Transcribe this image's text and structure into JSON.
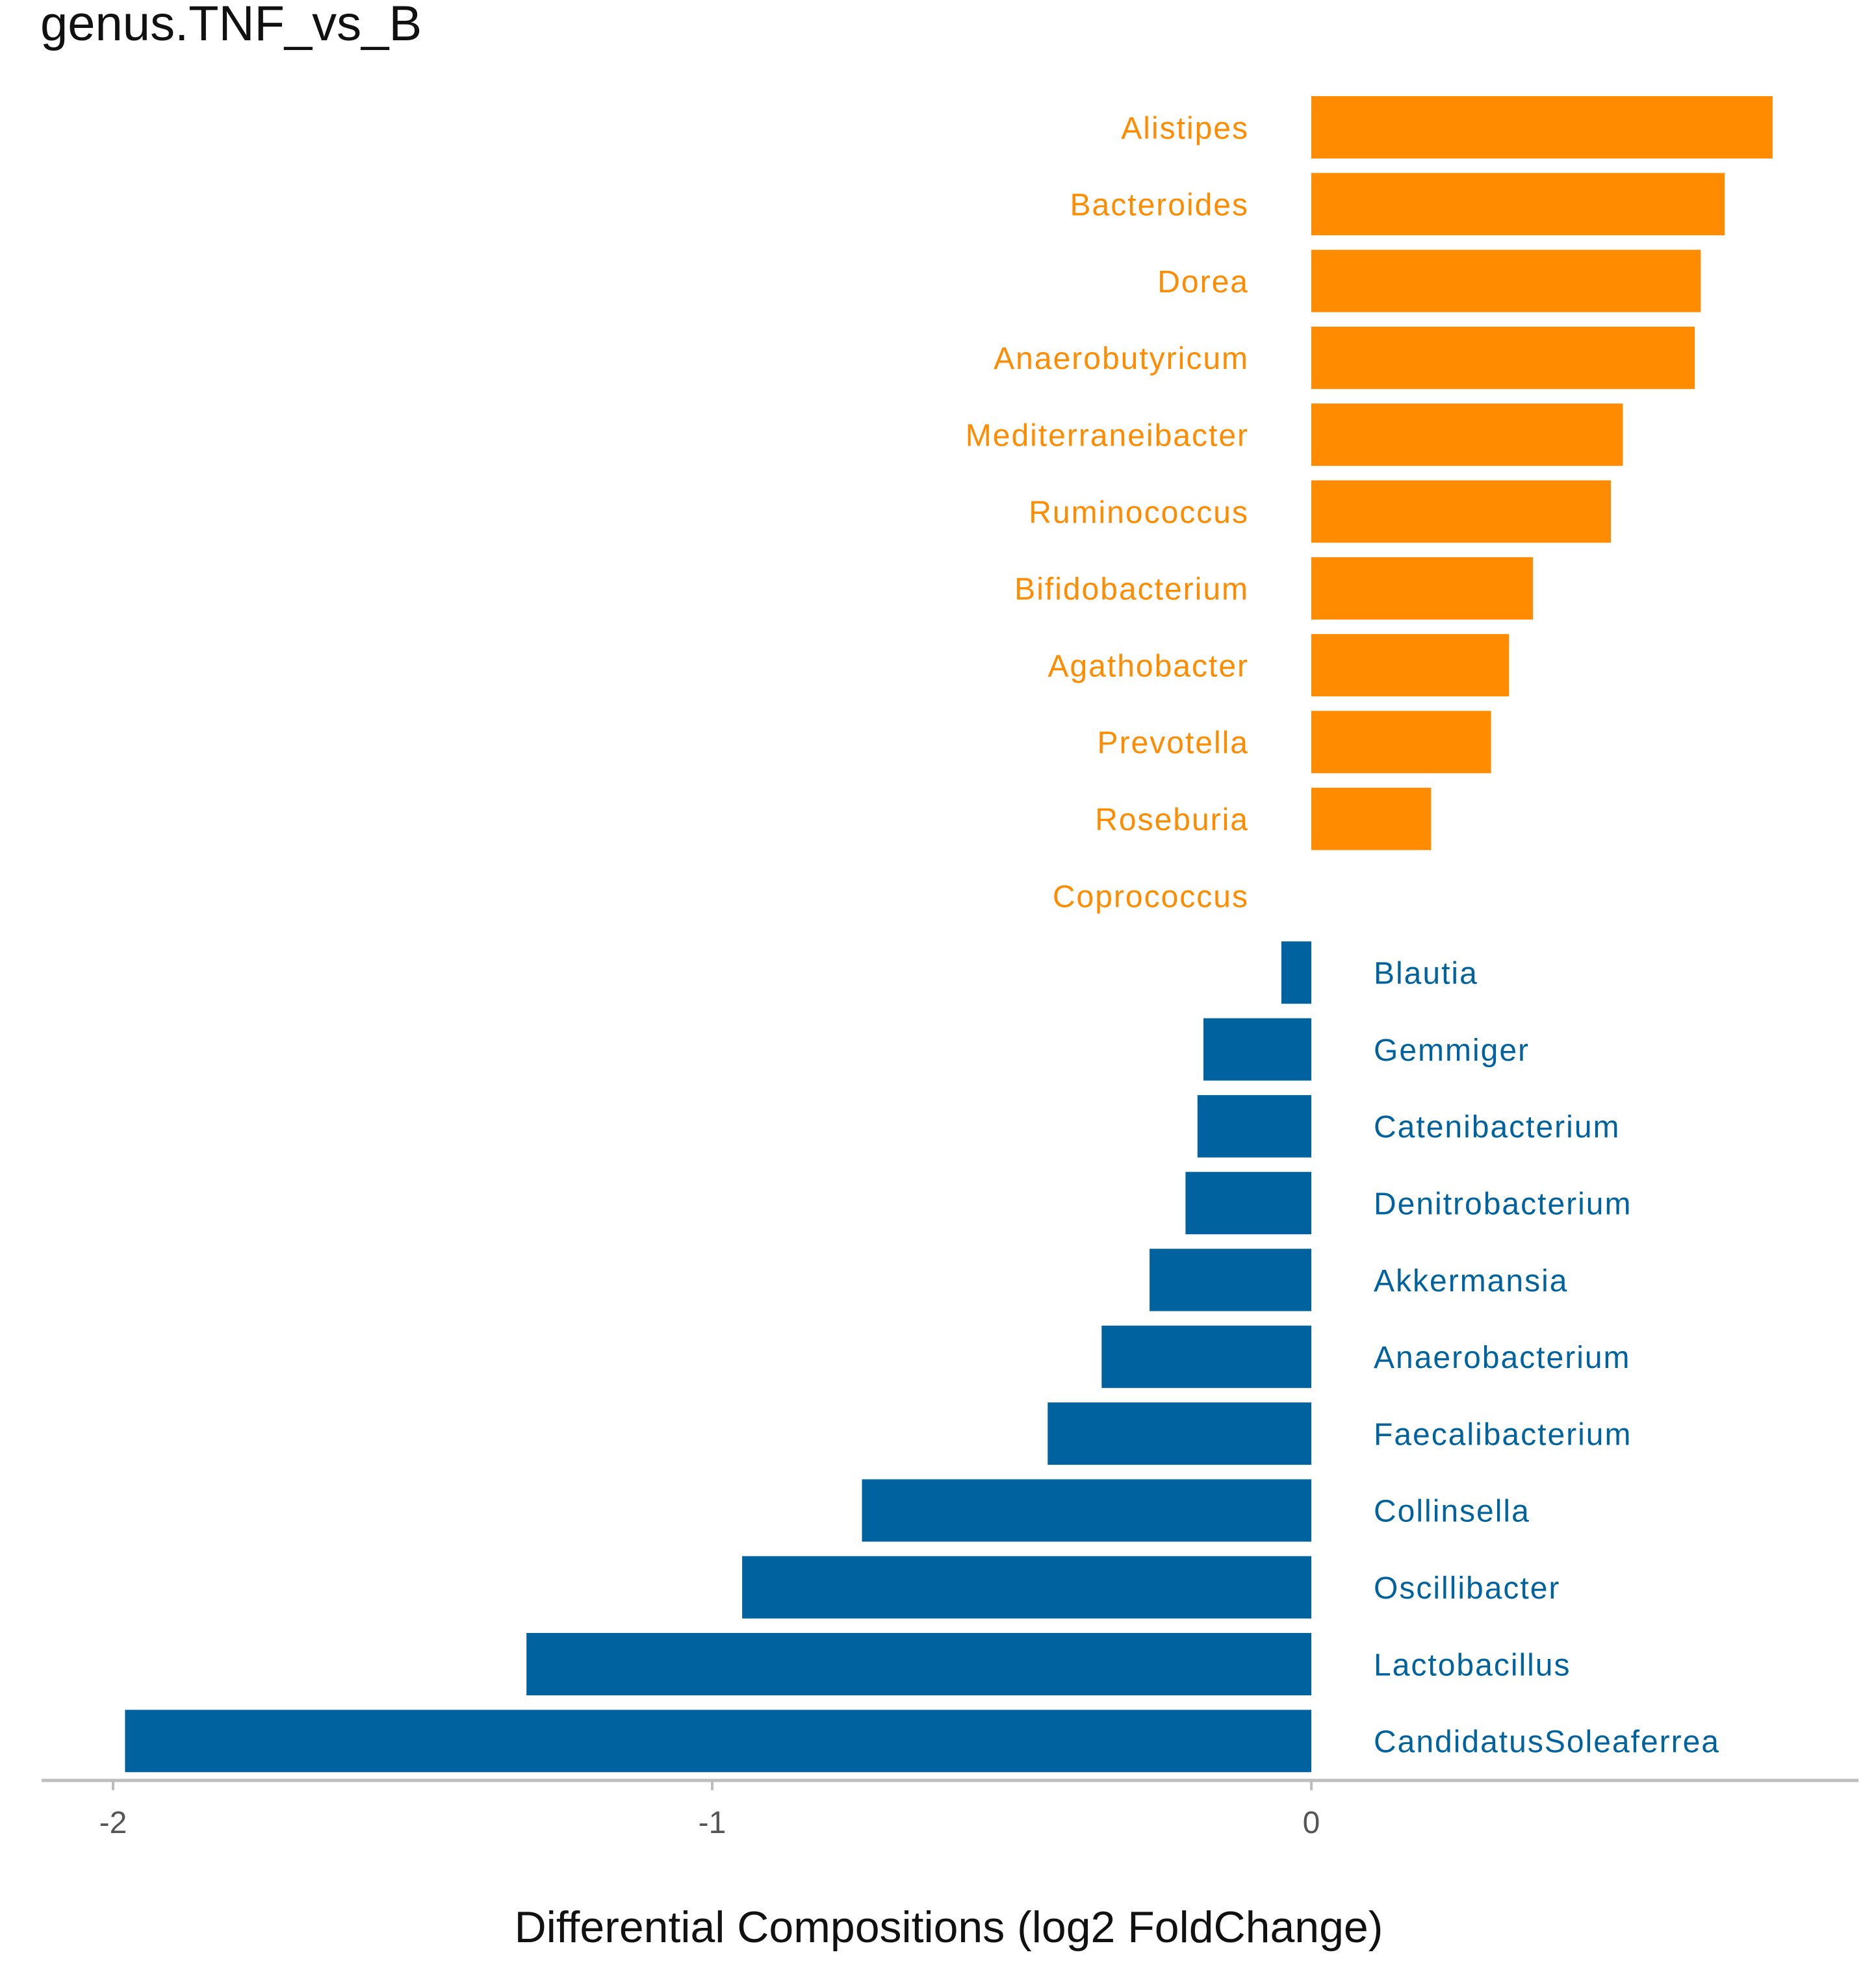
{
  "colors": {
    "positive": "#FF8C00",
    "negative": "#00629F",
    "axis": "#BDBDBD",
    "tick_label": "#555555",
    "title": "#111111"
  },
  "chart_data": {
    "type": "bar",
    "orientation": "horizontal",
    "title": "genus.TNF_vs_B",
    "xlabel": "Differential Compositions (log2 FoldChange)",
    "ylabel": "",
    "xlim": [
      -2.12,
      0.91
    ],
    "xticks": [
      -2,
      -1,
      0
    ],
    "xtick_labels": [
      "-2",
      "-1",
      "0"
    ],
    "grid": false,
    "legend": "none",
    "categories": [
      "Alistipes",
      "Bacteroides",
      "Dorea",
      "Anaerobutyricum",
      "Mediterraneibacter",
      "Ruminococcus",
      "Bifidobacterium",
      "Agathobacter",
      "Prevotella",
      "Roseburia",
      "Coprococcus",
      "Blautia",
      "Gemmiger",
      "Catenibacterium",
      "Denitrobacterium",
      "Akkermansia",
      "Anaerobacterium",
      "Faecalibacterium",
      "Collinsella",
      "Oscillibacter",
      "Lactobacillus",
      "CandidatusSoleaferrea"
    ],
    "values": [
      0.77,
      0.69,
      0.65,
      0.64,
      0.52,
      0.5,
      0.37,
      0.33,
      0.3,
      0.2,
      0.0,
      -0.05,
      -0.18,
      -0.19,
      -0.21,
      -0.27,
      -0.35,
      -0.44,
      -0.75,
      -0.95,
      -1.31,
      -1.98
    ]
  }
}
